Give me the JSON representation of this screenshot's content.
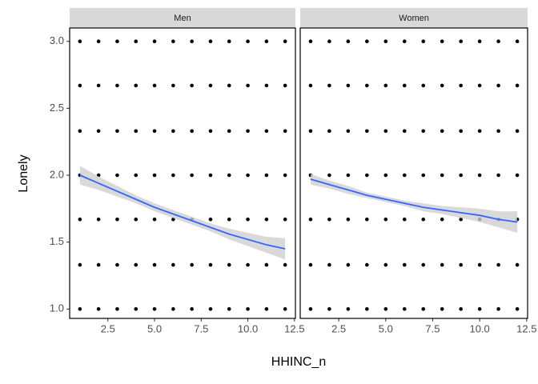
{
  "chart_data": [
    {
      "type": "scatter",
      "title": "Men",
      "x_label": "HHINC_n",
      "y_label": "Lonely",
      "xlim": [
        0.45,
        12.55
      ],
      "ylim": [
        0.93,
        3.1
      ],
      "xticks": [
        2.5,
        {
          "value": 5,
          "label": "5.0"
        },
        7.5,
        {
          "value": 10,
          "label": "10.0"
        },
        12.5
      ],
      "yticks": [
        {
          "value": 1,
          "label": "1.0"
        },
        1.5,
        {
          "value": 2,
          "label": "2.0"
        },
        2.5,
        {
          "value": 3,
          "label": "3.0"
        }
      ],
      "points": {
        "color": "#000000",
        "x": [
          1,
          2,
          3,
          4,
          5,
          6,
          7,
          8,
          9,
          10,
          11,
          12,
          1,
          2,
          3,
          4,
          5,
          6,
          7,
          8,
          9,
          10,
          11,
          12,
          1,
          2,
          3,
          4,
          5,
          6,
          7,
          8,
          9,
          10,
          11,
          12,
          1,
          2,
          3,
          4,
          5,
          6,
          7,
          8,
          9,
          10,
          11,
          12,
          1,
          2,
          3,
          4,
          5,
          6,
          7,
          8,
          9,
          10,
          11,
          12,
          1,
          2,
          3,
          4,
          5,
          6,
          7,
          8,
          9,
          10,
          11,
          12,
          1,
          2,
          3,
          4,
          5,
          6,
          7,
          8,
          9,
          10,
          11,
          12
        ],
        "y": [
          1,
          1,
          1,
          1,
          1,
          1,
          1,
          1,
          1,
          1,
          1,
          1,
          1.33,
          1.33,
          1.33,
          1.33,
          1.33,
          1.33,
          1.33,
          1.33,
          1.33,
          1.33,
          1.33,
          1.33,
          1.67,
          1.67,
          1.67,
          1.67,
          1.67,
          1.67,
          1.67,
          1.67,
          1.67,
          1.67,
          1.67,
          1.67,
          2,
          2,
          2,
          2,
          2,
          2,
          2,
          2,
          2,
          2,
          2,
          2,
          2.33,
          2.33,
          2.33,
          2.33,
          2.33,
          2.33,
          2.33,
          2.33,
          2.33,
          2.33,
          2.33,
          2.33,
          2.67,
          2.67,
          2.67,
          2.67,
          2.67,
          2.67,
          2.67,
          2.67,
          2.67,
          2.67,
          2.67,
          2.67,
          3,
          3,
          3,
          3,
          3,
          3,
          3,
          3,
          3,
          3,
          3,
          3
        ]
      },
      "smooth": {
        "color": "#3366ff",
        "band_color": "#d0d0d0",
        "x": [
          1,
          2,
          3,
          4,
          5,
          6,
          7,
          8,
          9,
          10,
          11,
          12
        ],
        "y": [
          2.0,
          1.94,
          1.88,
          1.82,
          1.76,
          1.71,
          1.66,
          1.61,
          1.56,
          1.52,
          1.48,
          1.45
        ],
        "lower": [
          1.93,
          1.89,
          1.84,
          1.79,
          1.73,
          1.68,
          1.63,
          1.58,
          1.52,
          1.47,
          1.42,
          1.37
        ],
        "upper": [
          2.07,
          1.99,
          1.92,
          1.85,
          1.79,
          1.74,
          1.69,
          1.64,
          1.6,
          1.57,
          1.54,
          1.53
        ]
      }
    },
    {
      "type": "scatter",
      "title": "Women",
      "xlim": [
        0.45,
        12.55
      ],
      "ylim": [
        0.93,
        3.1
      ],
      "xticks": [
        2.5,
        {
          "value": 5,
          "label": "5.0"
        },
        7.5,
        {
          "value": 10,
          "label": "10.0"
        },
        12.5
      ],
      "points": {
        "color": "#000000",
        "x": [
          1,
          2,
          3,
          4,
          5,
          6,
          7,
          8,
          9,
          10,
          11,
          12,
          1,
          2,
          3,
          4,
          5,
          6,
          7,
          8,
          9,
          10,
          11,
          12,
          1,
          2,
          3,
          4,
          5,
          6,
          7,
          8,
          9,
          10,
          11,
          12,
          1,
          2,
          3,
          4,
          5,
          6,
          7,
          8,
          9,
          10,
          11,
          12,
          1,
          2,
          3,
          4,
          5,
          6,
          7,
          8,
          9,
          10,
          11,
          12,
          1,
          2,
          3,
          4,
          5,
          6,
          7,
          8,
          9,
          10,
          11,
          12,
          1,
          2,
          3,
          4,
          5,
          6,
          7,
          8,
          9,
          10,
          11,
          12
        ],
        "y": [
          1,
          1,
          1,
          1,
          1,
          1,
          1,
          1,
          1,
          1,
          1,
          1,
          1.33,
          1.33,
          1.33,
          1.33,
          1.33,
          1.33,
          1.33,
          1.33,
          1.33,
          1.33,
          1.33,
          1.33,
          1.67,
          1.67,
          1.67,
          1.67,
          1.67,
          1.67,
          1.67,
          1.67,
          1.67,
          1.67,
          1.67,
          1.67,
          2,
          2,
          2,
          2,
          2,
          2,
          2,
          2,
          2,
          2,
          2,
          2,
          2.33,
          2.33,
          2.33,
          2.33,
          2.33,
          2.33,
          2.33,
          2.33,
          2.33,
          2.33,
          2.33,
          2.33,
          2.67,
          2.67,
          2.67,
          2.67,
          2.67,
          2.67,
          2.67,
          2.67,
          2.67,
          2.67,
          2.67,
          2.67,
          3,
          3,
          3,
          3,
          3,
          3,
          3,
          3,
          3,
          3,
          3,
          3
        ]
      },
      "smooth": {
        "color": "#3366ff",
        "band_color": "#d0d0d0",
        "x": [
          1,
          2,
          3,
          4,
          5,
          6,
          7,
          8,
          9,
          10,
          11,
          12
        ],
        "y": [
          1.97,
          1.93,
          1.89,
          1.85,
          1.82,
          1.79,
          1.76,
          1.74,
          1.72,
          1.7,
          1.67,
          1.65
        ],
        "lower": [
          1.93,
          1.9,
          1.86,
          1.83,
          1.8,
          1.77,
          1.73,
          1.71,
          1.68,
          1.65,
          1.61,
          1.57
        ],
        "upper": [
          2.01,
          1.96,
          1.92,
          1.87,
          1.84,
          1.81,
          1.79,
          1.77,
          1.76,
          1.75,
          1.73,
          1.73
        ]
      }
    }
  ]
}
